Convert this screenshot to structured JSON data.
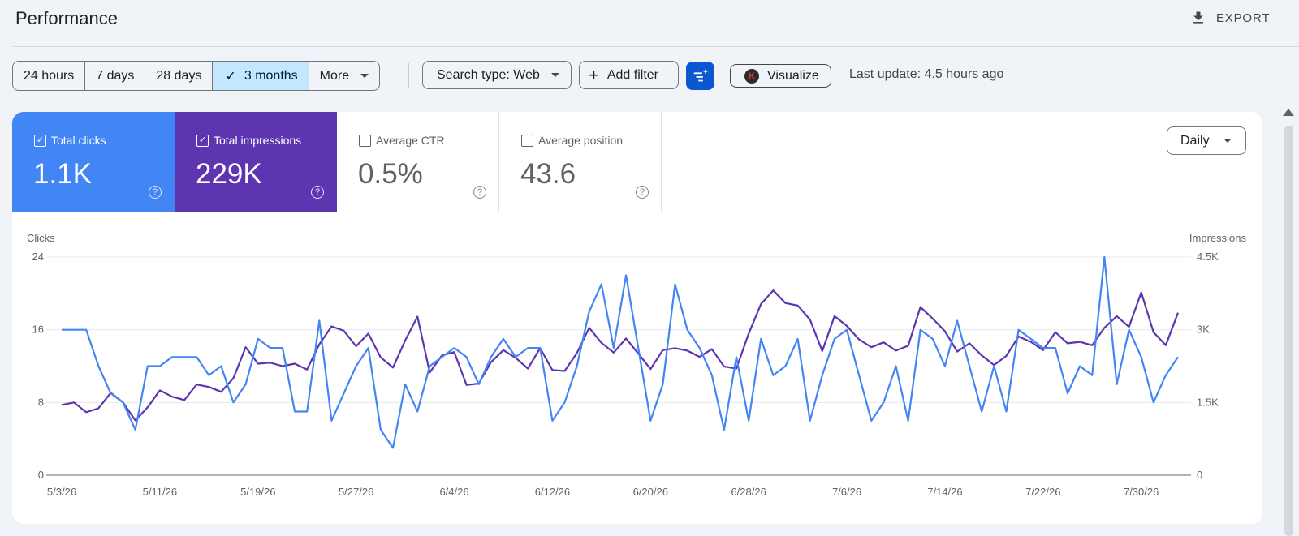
{
  "header": {
    "title": "Performance",
    "export_label": "EXPORT"
  },
  "toolbar": {
    "ranges": [
      "24 hours",
      "7 days",
      "28 days",
      "3 months"
    ],
    "active_range": "3 months",
    "more_label": "More",
    "search_type_label": "Search type: Web",
    "add_filter_label": "Add filter",
    "visualize_label": "Visualize",
    "visualize_badge": "K",
    "last_update": "Last update: 4.5 hours ago"
  },
  "metrics": [
    {
      "label": "Total clicks",
      "value": "1.1K",
      "checked": true,
      "color": "#4285f4"
    },
    {
      "label": "Total impressions",
      "value": "229K",
      "checked": true,
      "color": "#5e35b1"
    },
    {
      "label": "Average CTR",
      "value": "0.5%",
      "checked": false
    },
    {
      "label": "Average position",
      "value": "43.6",
      "checked": false
    }
  ],
  "granularity": "Daily",
  "colors": {
    "clicks": "#4285f4",
    "impressions": "#5e35b1",
    "active_bg": "#c2e7ff",
    "primary": "#0b57d0"
  },
  "chart_data": {
    "type": "line",
    "ylabel": "Clicks",
    "y2label": "Impressions",
    "yticks": [
      "0",
      "8",
      "16",
      "24"
    ],
    "y2ticks": [
      "0",
      "1.5K",
      "3K",
      "4.5K"
    ],
    "ylim": [
      0,
      24
    ],
    "y2lim": [
      0,
      4500
    ],
    "xticks": [
      "5/3/26",
      "5/11/26",
      "5/19/26",
      "5/27/26",
      "6/4/26",
      "6/12/26",
      "6/20/26",
      "6/28/26",
      "7/6/26",
      "7/14/26",
      "7/22/26",
      "7/30/26"
    ],
    "x_start": "5/3/26",
    "series": [
      {
        "name": "Clicks",
        "axis": "left",
        "color": "#4285f4",
        "values": [
          16,
          16,
          16,
          12,
          9,
          8,
          5,
          12,
          12,
          13,
          13,
          13,
          11,
          12,
          8,
          10,
          15,
          14,
          14,
          7,
          7,
          17,
          6,
          9,
          12,
          14,
          5,
          3,
          10,
          7,
          12,
          13,
          14,
          13,
          10,
          13,
          15,
          13,
          14,
          14,
          6,
          8,
          12,
          18,
          21,
          14,
          22,
          14,
          6,
          10,
          21,
          16,
          14,
          11,
          5,
          13,
          6,
          15,
          11,
          12,
          15,
          6,
          11,
          15,
          16,
          11,
          6,
          8,
          12,
          6,
          16,
          15,
          12,
          17,
          12,
          7,
          12,
          7,
          16,
          15,
          14,
          14,
          9,
          12,
          11,
          24,
          10,
          16,
          13,
          8,
          11,
          13
        ]
      },
      {
        "name": "Impressions",
        "axis": "right",
        "color": "#5e35b1",
        "values": [
          1450,
          1500,
          1300,
          1380,
          1700,
          1500,
          1130,
          1400,
          1750,
          1620,
          1550,
          1870,
          1820,
          1720,
          2000,
          2640,
          2300,
          2320,
          2250,
          2300,
          2180,
          2700,
          3070,
          2980,
          2660,
          2920,
          2430,
          2220,
          2780,
          3270,
          2120,
          2470,
          2540,
          1860,
          1890,
          2330,
          2580,
          2420,
          2200,
          2620,
          2170,
          2150,
          2520,
          3040,
          2730,
          2530,
          2820,
          2510,
          2190,
          2580,
          2620,
          2570,
          2440,
          2600,
          2240,
          2200,
          2920,
          3530,
          3810,
          3550,
          3500,
          3210,
          2560,
          3280,
          3080,
          2800,
          2640,
          2740,
          2570,
          2670,
          3470,
          3230,
          2970,
          2550,
          2720,
          2470,
          2270,
          2460,
          2860,
          2750,
          2580,
          2950,
          2720,
          2750,
          2680,
          3040,
          3280,
          3060,
          3770,
          2950,
          2680,
          3350
        ]
      }
    ]
  }
}
